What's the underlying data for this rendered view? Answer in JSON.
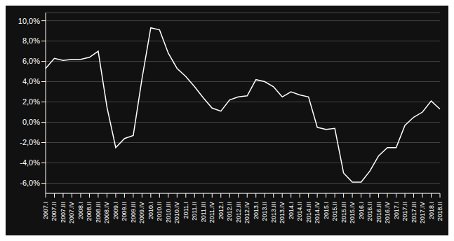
{
  "chart_data": {
    "type": "line",
    "categories": [
      "2007.I",
      "2007.II",
      "2007.III",
      "2007.IV",
      "2008.I",
      "2008.II",
      "2008.III",
      "2008.IV",
      "2009.I",
      "2009.II",
      "2009.III",
      "2009.IV",
      "2010.I",
      "2010.II",
      "2010.III",
      "2010.IV",
      "2011.I",
      "2011.II",
      "2011.III",
      "2011.IV",
      "2012.I",
      "2012.II",
      "2012.III",
      "2012.IV",
      "2013.I",
      "2013.II",
      "2013.III",
      "2013.IV",
      "2014.I",
      "2014.II",
      "2014.III",
      "2014.IV",
      "2015.I",
      "2015.II",
      "2015.III",
      "2015.IV",
      "2016.I",
      "2016.II",
      "2016.III",
      "2016.IV",
      "2017.I",
      "2017.II",
      "2017.III",
      "2017.IV",
      "2018.I",
      "2018.II"
    ],
    "values": [
      5.3,
      6.3,
      6.1,
      6.2,
      6.2,
      6.4,
      7.0,
      1.5,
      -2.5,
      -1.6,
      -1.3,
      4.3,
      9.3,
      9.1,
      6.8,
      5.3,
      4.5,
      3.5,
      2.4,
      1.4,
      1.1,
      2.2,
      2.5,
      2.6,
      4.2,
      4.0,
      3.5,
      2.5,
      3.0,
      2.7,
      2.5,
      -0.5,
      -0.7,
      -0.6,
      -5.0,
      -5.9,
      -5.9,
      -4.8,
      -3.3,
      -2.5,
      -2.5,
      -0.3,
      0.5,
      1.0,
      2.1,
      1.3
    ],
    "color": "#ffffff",
    "ylim": [
      -7.0,
      10.8
    ],
    "yticks": [
      {
        "value": -6,
        "label": "-6,0%"
      },
      {
        "value": -4,
        "label": "-4,0%"
      },
      {
        "value": -2,
        "label": "-2,0%"
      },
      {
        "value": 0,
        "label": "0,0%"
      },
      {
        "value": 2,
        "label": "2,0%"
      },
      {
        "value": 4,
        "label": "4,0%"
      },
      {
        "value": 6,
        "label": "6,0%"
      },
      {
        "value": 8,
        "label": "8,0%"
      },
      {
        "value": 10,
        "label": "10,0%"
      }
    ],
    "grid": true
  }
}
